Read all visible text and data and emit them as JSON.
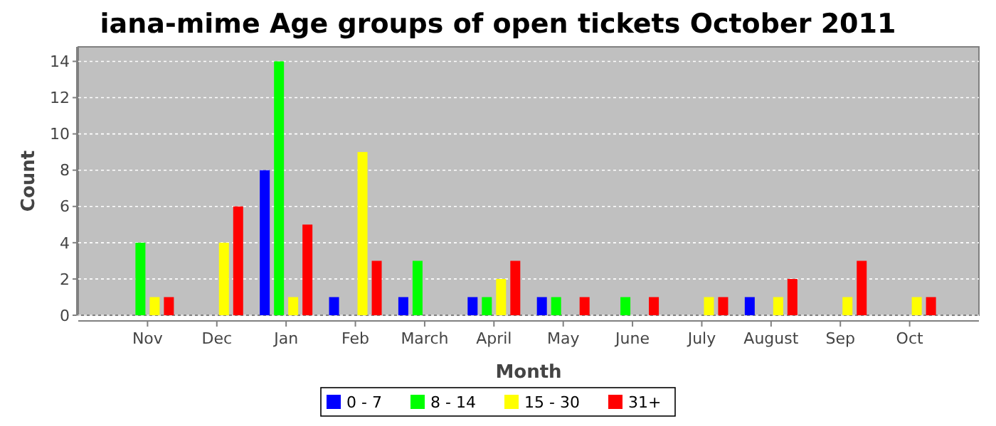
{
  "chart_data": {
    "type": "bar",
    "title": "iana-mime Age groups of open tickets October 2011",
    "xlabel": "Month",
    "ylabel": "Count",
    "categories": [
      "Nov",
      "Dec",
      "Jan",
      "Feb",
      "March",
      "April",
      "May",
      "June",
      "July",
      "August",
      "Sep",
      "Oct"
    ],
    "series": [
      {
        "name": "0 - 7",
        "color": "#0000ff",
        "values": [
          0,
          0,
          8,
          1,
          1,
          1,
          1,
          0,
          0,
          1,
          0,
          0
        ]
      },
      {
        "name": "8 - 14",
        "color": "#00ff00",
        "values": [
          4,
          0,
          14,
          0,
          3,
          1,
          1,
          1,
          0,
          0,
          0,
          0
        ]
      },
      {
        "name": "15 - 30",
        "color": "#ffff00",
        "values": [
          1,
          4,
          1,
          9,
          0,
          2,
          0,
          0,
          1,
          1,
          1,
          1
        ]
      },
      {
        "name": "31+",
        "color": "#ff0000",
        "values": [
          1,
          6,
          5,
          3,
          0,
          3,
          1,
          1,
          1,
          2,
          3,
          1
        ]
      }
    ],
    "ylim": [
      0,
      14.8
    ],
    "yticks": [
      0,
      2,
      4,
      6,
      8,
      10,
      12,
      14
    ],
    "grid": "y",
    "legend": "bottom"
  }
}
